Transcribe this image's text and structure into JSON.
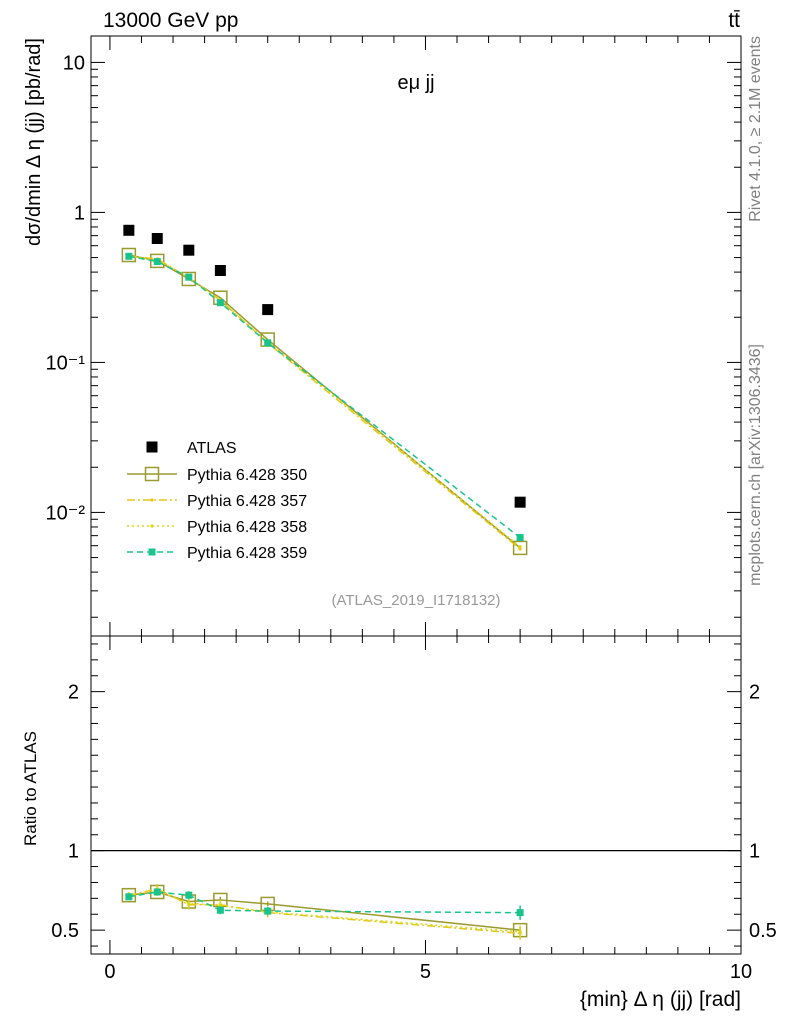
{
  "header": {
    "left": "13000 GeV pp",
    "right": "tt̄"
  },
  "side_labels": {
    "rivet": "Rivet 4.1.0, ≥ 2.1M events",
    "mcplots": "mcplots.cern.ch [arXiv:1306.3436]"
  },
  "chart_data": [
    {
      "type": "scatter",
      "panel": "main",
      "title": "eμ jj",
      "analysis_tag": "(ATLAS_2019_I1718132)",
      "xlabel": "",
      "ylabel": "dσ/dmin Δ η (jj) [pb/rad]",
      "yscale": "log",
      "xlim": [
        -0.3,
        10
      ],
      "ylim": [
        0.0015,
        15
      ],
      "y_tick_labels": [
        "10⁻²",
        "10⁻¹",
        "1",
        "10"
      ],
      "legend_position": "bottom-left",
      "x": [
        0.3,
        0.75,
        1.25,
        1.75,
        2.5,
        6.5
      ],
      "series": [
        {
          "name": "ATLAS",
          "color": "#000000",
          "style": "marker-square",
          "values": [
            0.76,
            0.67,
            0.56,
            0.41,
            0.225,
            0.0117
          ]
        },
        {
          "name": "Pythia 6.428 350",
          "color": "#9a9a2e",
          "style": "solid-open-square",
          "values": [
            0.52,
            0.475,
            0.36,
            0.27,
            0.142,
            0.0058
          ]
        },
        {
          "name": "Pythia 6.428 357",
          "color": "#e6c619",
          "style": "dashdot",
          "values": [
            0.51,
            0.49,
            0.365,
            0.26,
            0.135,
            0.0057
          ]
        },
        {
          "name": "Pythia 6.428 358",
          "color": "#d8d817",
          "style": "dotted",
          "values": [
            0.515,
            0.48,
            0.37,
            0.258,
            0.137,
            0.0059
          ]
        },
        {
          "name": "Pythia 6.428 359",
          "color": "#19c48c",
          "style": "dashed-filled-square",
          "values": [
            0.51,
            0.47,
            0.37,
            0.25,
            0.135,
            0.0068
          ]
        }
      ]
    },
    {
      "type": "line",
      "panel": "ratio",
      "xlabel": "{min} Δ η (jj) [rad]",
      "ylabel": "Ratio to ATLAS",
      "xlim": [
        -0.3,
        10
      ],
      "ylim": [
        0.35,
        2.35
      ],
      "x_tick_labels": [
        "0",
        "5",
        "10"
      ],
      "y_tick_labels": [
        "0.5",
        "1",
        "2"
      ],
      "reference_line": 1,
      "x": [
        0.3,
        0.75,
        1.25,
        1.75,
        2.5,
        6.5
      ],
      "series": [
        {
          "name": "Pythia 6.428 350",
          "color": "#9a9a2e",
          "style": "solid-open-square",
          "values": [
            0.72,
            0.74,
            0.68,
            0.69,
            0.665,
            0.5
          ],
          "errors": [
            0.01,
            0.015,
            0.015,
            0.02,
            0.015,
            0.02
          ]
        },
        {
          "name": "Pythia 6.428 357",
          "color": "#e6c619",
          "style": "dashdot",
          "values": [
            0.72,
            0.76,
            0.66,
            0.66,
            0.61,
            0.48
          ],
          "errors": [
            0.02,
            0.03,
            0.03,
            0.03,
            0.03,
            0.04
          ]
        },
        {
          "name": "Pythia 6.428 358",
          "color": "#d8d817",
          "style": "dotted",
          "values": [
            0.72,
            0.745,
            0.67,
            0.655,
            0.615,
            0.49
          ],
          "errors": [
            0.02,
            0.03,
            0.03,
            0.03,
            0.03,
            0.04
          ]
        },
        {
          "name": "Pythia 6.428 359",
          "color": "#19c48c",
          "style": "dashed-filled-square",
          "values": [
            0.71,
            0.74,
            0.72,
            0.625,
            0.62,
            0.61
          ],
          "errors": [
            0.02,
            0.02,
            0.025,
            0.025,
            0.025,
            0.045
          ]
        }
      ]
    }
  ]
}
